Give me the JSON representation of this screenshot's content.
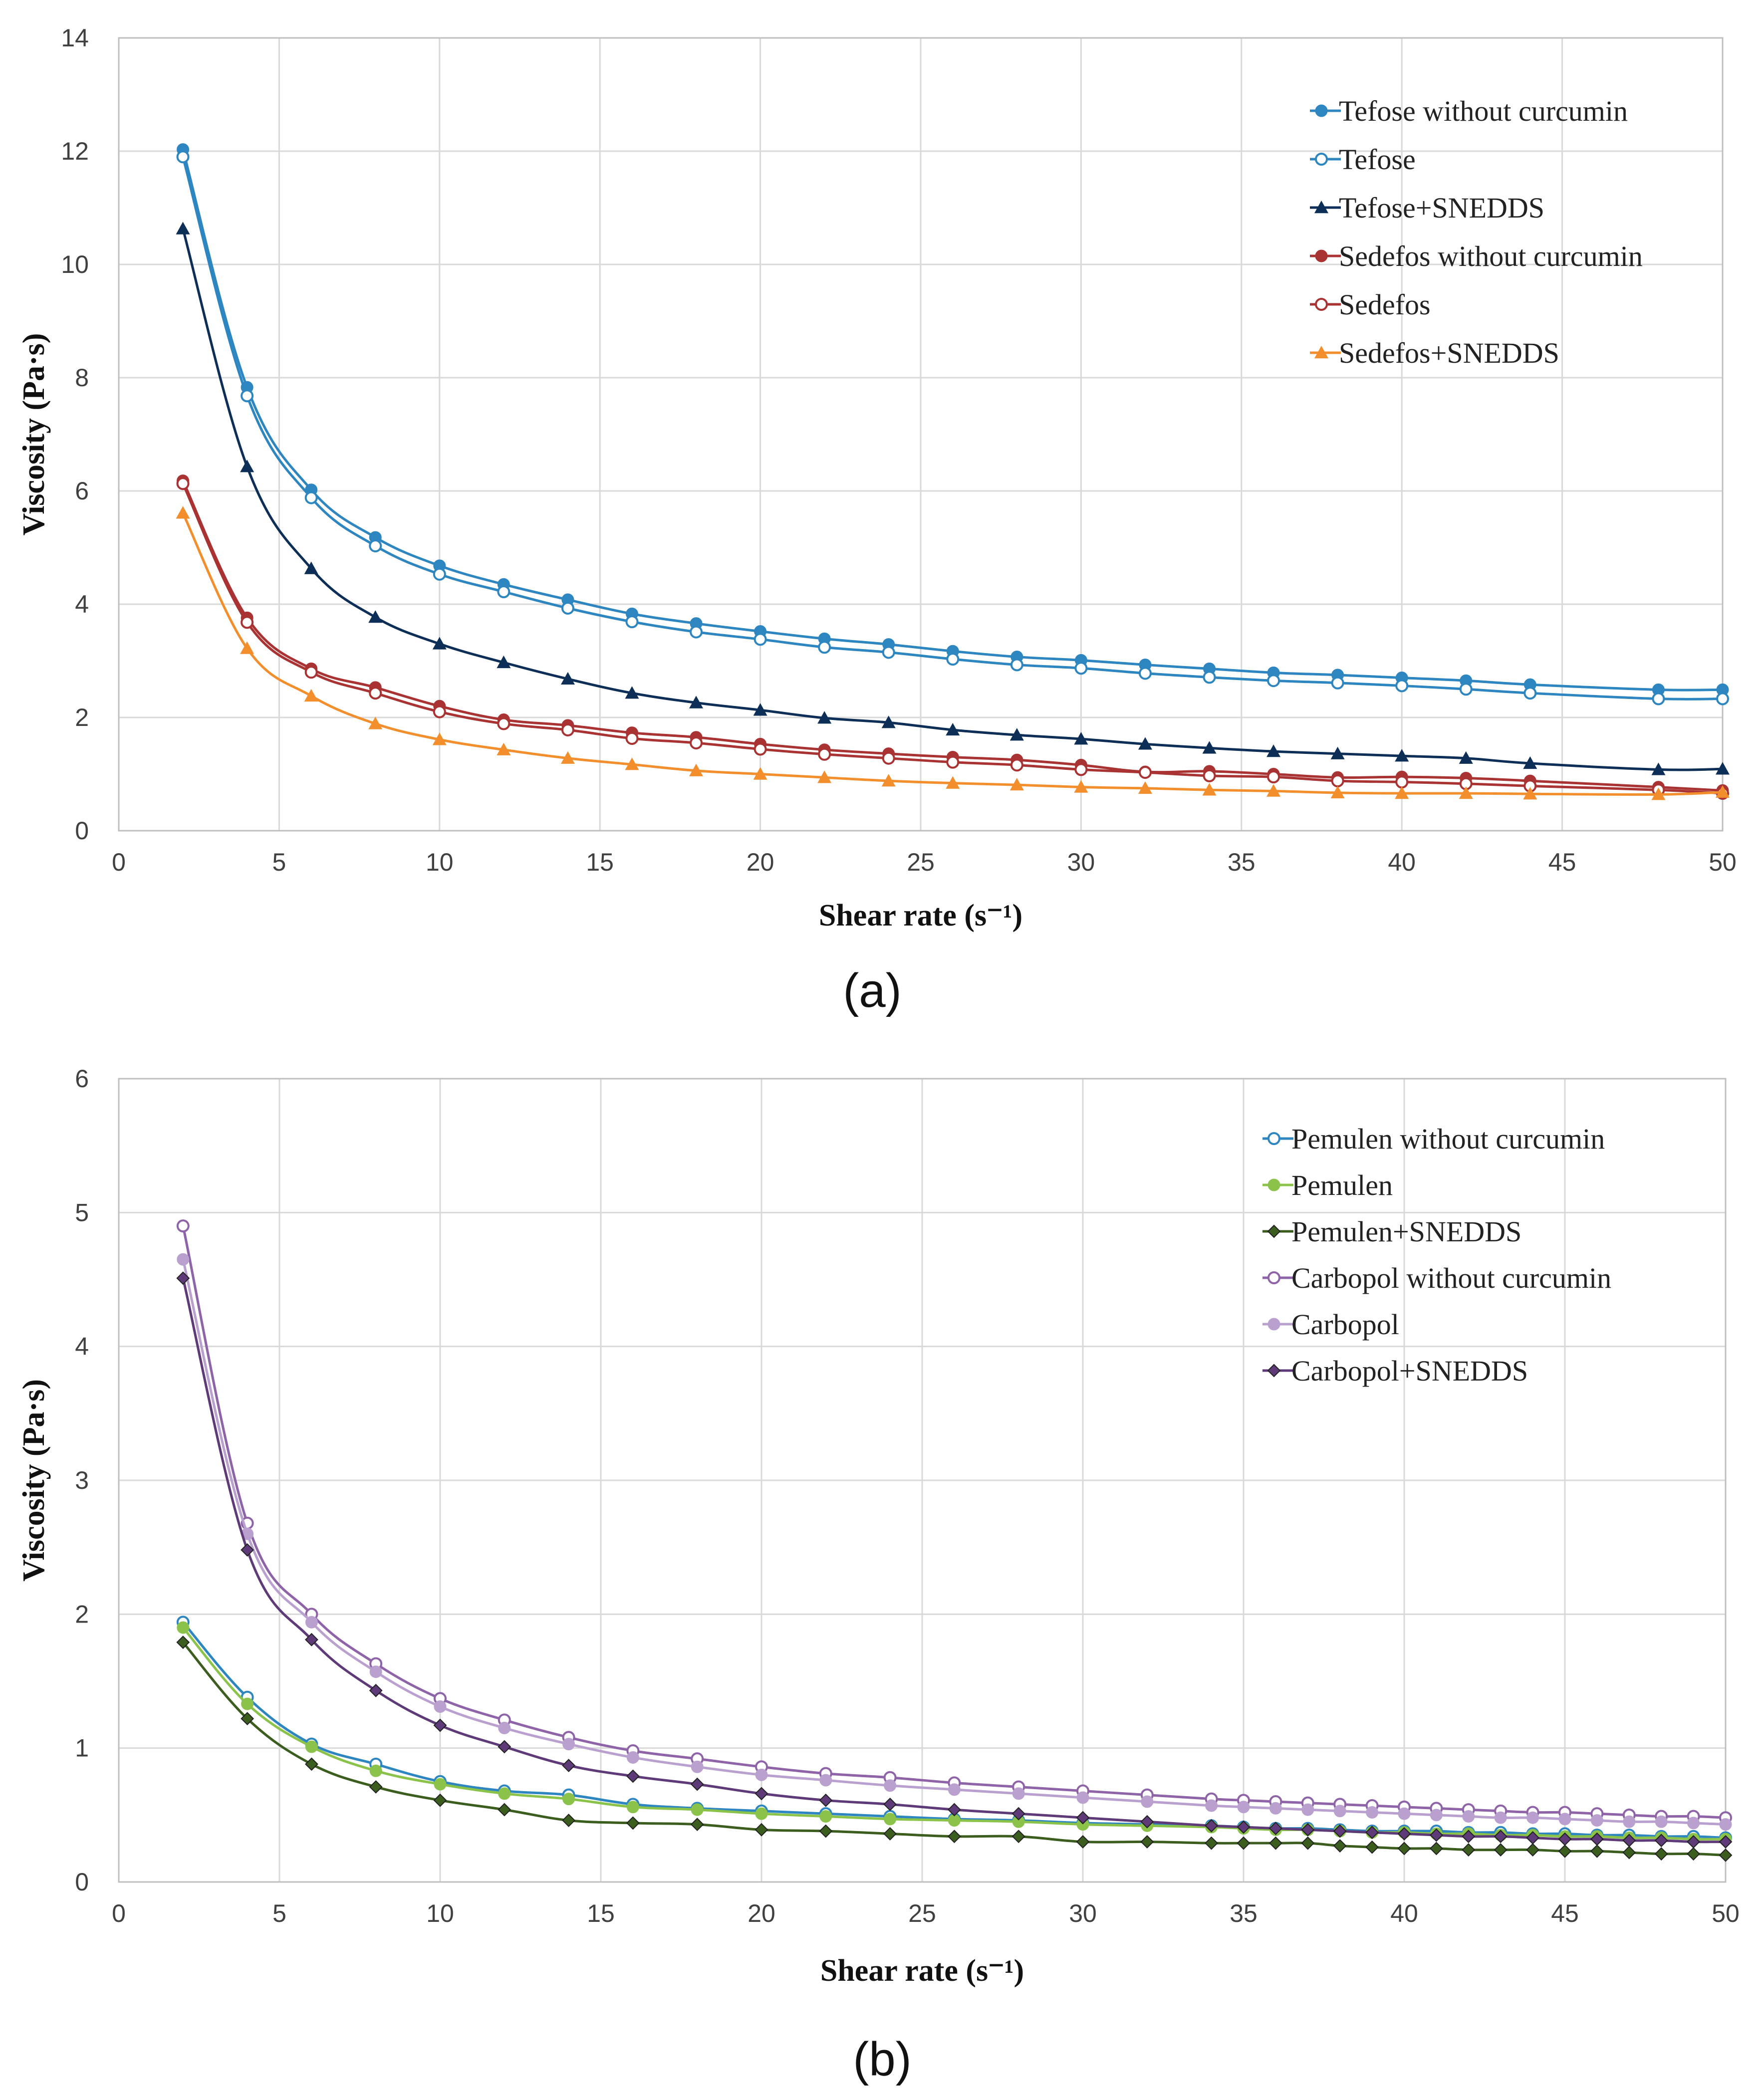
{
  "chart_data": [
    {
      "type": "line",
      "panel_label": "(a)",
      "xlabel": "Shear rate (s⁻¹)",
      "ylabel": "Viscosity (Pa·s)",
      "xlim": [
        0,
        50
      ],
      "ylim": [
        0,
        14
      ],
      "x_ticks": [
        "0",
        "5",
        "10",
        "15",
        "20",
        "25",
        "30",
        "35",
        "40",
        "45",
        "50"
      ],
      "y_ticks": [
        "0",
        "2",
        "4",
        "6",
        "8",
        "10",
        "12",
        "14"
      ],
      "grid": true,
      "legend": "top-right",
      "series": [
        {
          "name": "Tefose without curcumin",
          "color": "#2E86C1",
          "marker": "filled-circle",
          "x": [
            2,
            4,
            6,
            8,
            10,
            12,
            14,
            16,
            18,
            20,
            22,
            24,
            26,
            28,
            30,
            32,
            34,
            36,
            38,
            40,
            42,
            44,
            48,
            50
          ],
          "values": [
            12.03,
            7.83,
            6.02,
            5.18,
            4.68,
            4.35,
            4.08,
            3.83,
            3.66,
            3.52,
            3.39,
            3.29,
            3.17,
            3.07,
            3.01,
            2.93,
            2.86,
            2.79,
            2.75,
            2.7,
            2.65,
            2.58,
            2.49,
            2.49
          ]
        },
        {
          "name": "Tefose",
          "color": "#2E86C1",
          "marker": "open-circle",
          "x": [
            2,
            4,
            6,
            8,
            10,
            12,
            14,
            16,
            18,
            20,
            22,
            24,
            26,
            28,
            30,
            32,
            34,
            36,
            38,
            40,
            42,
            44,
            48,
            50
          ],
          "values": [
            11.9,
            7.68,
            5.88,
            5.03,
            4.53,
            4.22,
            3.93,
            3.69,
            3.51,
            3.38,
            3.24,
            3.15,
            3.03,
            2.93,
            2.87,
            2.78,
            2.71,
            2.65,
            2.61,
            2.56,
            2.5,
            2.43,
            2.33,
            2.33
          ]
        },
        {
          "name": "Tefose+SNEDDS",
          "color": "#0D2E56",
          "marker": "filled-triangle",
          "x": [
            2,
            4,
            6,
            8,
            10,
            12,
            14,
            16,
            18,
            20,
            22,
            24,
            26,
            28,
            30,
            32,
            34,
            36,
            38,
            40,
            42,
            44,
            48,
            50
          ],
          "values": [
            10.63,
            6.43,
            4.63,
            3.77,
            3.3,
            2.97,
            2.68,
            2.43,
            2.26,
            2.13,
            1.99,
            1.91,
            1.78,
            1.69,
            1.62,
            1.53,
            1.46,
            1.4,
            1.36,
            1.32,
            1.28,
            1.19,
            1.08,
            1.09
          ]
        },
        {
          "name": "Sedefos without curcumin",
          "color": "#A93232",
          "marker": "filled-circle",
          "x": [
            2,
            4,
            6,
            8,
            10,
            12,
            14,
            16,
            18,
            20,
            22,
            24,
            26,
            28,
            30,
            32,
            34,
            36,
            38,
            40,
            42,
            44,
            48,
            50
          ],
          "values": [
            6.18,
            3.76,
            2.86,
            2.53,
            2.2,
            1.96,
            1.86,
            1.73,
            1.65,
            1.53,
            1.43,
            1.36,
            1.3,
            1.25,
            1.16,
            1.04,
            1.05,
            1.0,
            0.94,
            0.95,
            0.93,
            0.88,
            0.77,
            0.71
          ]
        },
        {
          "name": "Sedefos",
          "color": "#A93232",
          "marker": "open-circle",
          "x": [
            2,
            4,
            6,
            8,
            10,
            12,
            14,
            16,
            18,
            20,
            22,
            24,
            26,
            28,
            30,
            32,
            34,
            36,
            38,
            40,
            42,
            44,
            48,
            50
          ],
          "values": [
            6.13,
            3.68,
            2.8,
            2.43,
            2.1,
            1.89,
            1.78,
            1.63,
            1.55,
            1.44,
            1.35,
            1.28,
            1.21,
            1.16,
            1.08,
            1.03,
            0.97,
            0.95,
            0.88,
            0.86,
            0.83,
            0.79,
            0.72,
            0.66
          ]
        },
        {
          "name": "Sedefos+SNEDDS",
          "color": "#F28E2B",
          "marker": "filled-triangle",
          "x": [
            2,
            4,
            6,
            8,
            10,
            12,
            14,
            16,
            18,
            20,
            22,
            24,
            26,
            28,
            30,
            32,
            34,
            36,
            38,
            40,
            42,
            44,
            48,
            50
          ],
          "values": [
            5.61,
            3.22,
            2.38,
            1.89,
            1.61,
            1.43,
            1.28,
            1.17,
            1.06,
            1.0,
            0.94,
            0.88,
            0.84,
            0.81,
            0.77,
            0.75,
            0.72,
            0.7,
            0.67,
            0.66,
            0.66,
            0.65,
            0.64,
            0.68
          ]
        }
      ]
    },
    {
      "type": "line",
      "panel_label": "(b)",
      "xlabel": "Shear rate (s⁻¹)",
      "ylabel": "Viscosity (Pa·s)",
      "xlim": [
        0,
        50
      ],
      "ylim": [
        0,
        6
      ],
      "x_ticks": [
        "0",
        "5",
        "10",
        "15",
        "20",
        "25",
        "30",
        "35",
        "40",
        "45",
        "50"
      ],
      "y_ticks": [
        "0",
        "1",
        "2",
        "3",
        "4",
        "5",
        "6"
      ],
      "grid": true,
      "legend": "top-right",
      "series": [
        {
          "name": "Pemulen without curcumin",
          "color": "#2E86C1",
          "marker": "open-circle",
          "x": [
            2,
            4,
            6,
            8,
            10,
            12,
            14,
            16,
            18,
            20,
            22,
            24,
            26,
            28,
            30,
            32,
            34,
            35,
            36,
            37,
            38,
            39,
            40,
            41,
            42,
            43,
            44,
            45,
            46,
            47,
            48,
            49,
            50
          ],
          "values": [
            1.94,
            1.38,
            1.03,
            0.88,
            0.75,
            0.68,
            0.65,
            0.58,
            0.55,
            0.53,
            0.51,
            0.49,
            0.47,
            0.46,
            0.44,
            0.43,
            0.42,
            0.41,
            0.4,
            0.4,
            0.39,
            0.38,
            0.38,
            0.38,
            0.37,
            0.37,
            0.36,
            0.36,
            0.35,
            0.35,
            0.34,
            0.34,
            0.33
          ]
        },
        {
          "name": "Pemulen",
          "color": "#8BC34A",
          "marker": "filled-circle",
          "x": [
            2,
            4,
            6,
            8,
            10,
            12,
            14,
            16,
            18,
            20,
            22,
            24,
            26,
            28,
            30,
            32,
            34,
            35,
            36,
            37,
            38,
            39,
            40,
            41,
            42,
            43,
            44,
            45,
            46,
            47,
            48,
            49,
            50
          ],
          "values": [
            1.9,
            1.33,
            1.01,
            0.83,
            0.73,
            0.66,
            0.62,
            0.56,
            0.54,
            0.51,
            0.49,
            0.47,
            0.46,
            0.45,
            0.43,
            0.42,
            0.41,
            0.4,
            0.39,
            0.39,
            0.38,
            0.37,
            0.37,
            0.36,
            0.36,
            0.35,
            0.35,
            0.34,
            0.34,
            0.33,
            0.33,
            0.32,
            0.32
          ]
        },
        {
          "name": "Pemulen+SNEDDS",
          "color": "#3B5E1F",
          "marker": "filled-diamond",
          "x": [
            2,
            4,
            6,
            8,
            10,
            12,
            14,
            16,
            18,
            20,
            22,
            24,
            26,
            28,
            30,
            32,
            34,
            35,
            36,
            37,
            38,
            39,
            40,
            41,
            42,
            43,
            44,
            45,
            46,
            47,
            48,
            49,
            50
          ],
          "values": [
            1.79,
            1.22,
            0.88,
            0.71,
            0.61,
            0.54,
            0.46,
            0.44,
            0.43,
            0.39,
            0.38,
            0.36,
            0.34,
            0.34,
            0.3,
            0.3,
            0.29,
            0.29,
            0.29,
            0.29,
            0.27,
            0.26,
            0.25,
            0.25,
            0.24,
            0.24,
            0.24,
            0.23,
            0.23,
            0.22,
            0.21,
            0.21,
            0.2
          ]
        },
        {
          "name": "Carbopol without curcumin",
          "color": "#8E63A8",
          "marker": "open-circle",
          "x": [
            2,
            4,
            6,
            8,
            10,
            12,
            14,
            16,
            18,
            20,
            22,
            24,
            26,
            28,
            30,
            32,
            34,
            35,
            36,
            37,
            38,
            39,
            40,
            41,
            42,
            43,
            44,
            45,
            46,
            47,
            48,
            49,
            50
          ],
          "values": [
            4.9,
            2.68,
            2.0,
            1.63,
            1.37,
            1.21,
            1.08,
            0.98,
            0.92,
            0.86,
            0.81,
            0.78,
            0.74,
            0.71,
            0.68,
            0.65,
            0.62,
            0.61,
            0.6,
            0.59,
            0.58,
            0.57,
            0.56,
            0.55,
            0.54,
            0.53,
            0.52,
            0.52,
            0.51,
            0.5,
            0.49,
            0.49,
            0.48
          ]
        },
        {
          "name": "Carbopol",
          "color": "#B9A0CF",
          "marker": "filled-circle",
          "x": [
            2,
            4,
            6,
            8,
            10,
            12,
            14,
            16,
            18,
            20,
            22,
            24,
            26,
            28,
            30,
            32,
            34,
            35,
            36,
            37,
            38,
            39,
            40,
            41,
            42,
            43,
            44,
            45,
            46,
            47,
            48,
            49,
            50
          ],
          "values": [
            4.65,
            2.6,
            1.94,
            1.57,
            1.31,
            1.15,
            1.03,
            0.93,
            0.86,
            0.8,
            0.76,
            0.72,
            0.69,
            0.66,
            0.63,
            0.6,
            0.57,
            0.56,
            0.55,
            0.54,
            0.53,
            0.52,
            0.51,
            0.5,
            0.49,
            0.48,
            0.48,
            0.47,
            0.46,
            0.45,
            0.45,
            0.44,
            0.43
          ]
        },
        {
          "name": "Carbopol+SNEDDS",
          "color": "#5E3B78",
          "marker": "filled-diamond",
          "x": [
            2,
            4,
            6,
            8,
            10,
            12,
            14,
            16,
            18,
            20,
            22,
            24,
            26,
            28,
            30,
            32,
            34,
            35,
            36,
            37,
            38,
            39,
            40,
            41,
            42,
            43,
            44,
            45,
            46,
            47,
            48,
            49,
            50
          ],
          "values": [
            4.51,
            2.48,
            1.81,
            1.43,
            1.17,
            1.01,
            0.87,
            0.79,
            0.73,
            0.66,
            0.61,
            0.58,
            0.54,
            0.51,
            0.48,
            0.45,
            0.42,
            0.41,
            0.4,
            0.39,
            0.38,
            0.37,
            0.36,
            0.35,
            0.34,
            0.34,
            0.33,
            0.32,
            0.32,
            0.31,
            0.31,
            0.3,
            0.3
          ]
        }
      ]
    }
  ]
}
